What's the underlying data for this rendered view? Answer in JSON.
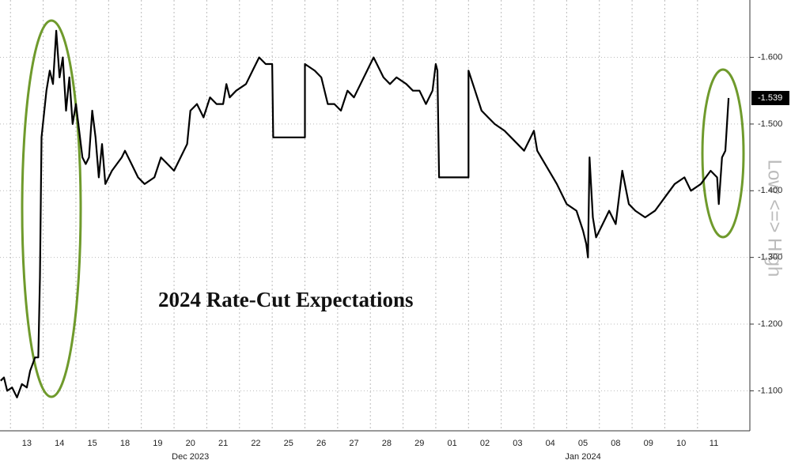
{
  "chart_data": {
    "type": "line",
    "annotation": "2024 Rate-Cut Expectations",
    "axis_label": "Low <=> High",
    "categories": [
      "13",
      "14",
      "15",
      "18",
      "19",
      "20",
      "21",
      "22",
      "25",
      "26",
      "27",
      "28",
      "29",
      "01",
      "02",
      "03",
      "04",
      "05",
      "08",
      "09",
      "10",
      "11"
    ],
    "months": [
      "Dec 2023",
      "Jan 2024"
    ],
    "xlim": [
      -0.82,
      22.1
    ],
    "ylim": [
      -1.04,
      -1.686
    ],
    "yticks": [
      {
        "value": -1.1,
        "label": "-1.100"
      },
      {
        "value": -1.2,
        "label": "-1.200"
      },
      {
        "value": -1.3,
        "label": "-1.300"
      },
      {
        "value": -1.4,
        "label": "-1.400"
      },
      {
        "value": -1.5,
        "label": "-1.500"
      },
      {
        "value": -1.6,
        "label": "-1.600"
      }
    ],
    "grid": true,
    "series": [
      {
        "color": "#000000",
        "x": [
          -0.8,
          -0.7,
          -0.6,
          -0.45,
          -0.3,
          -0.15,
          0,
          0.1,
          0.25,
          0.35,
          0.4,
          0.45,
          0.6,
          0.7,
          0.8,
          0.9,
          1.0,
          1.1,
          1.2,
          1.3,
          1.4,
          1.5,
          1.6,
          1.7,
          1.8,
          1.9,
          2.0,
          2.1,
          2.2,
          2.3,
          2.4,
          2.6,
          2.9,
          3.0,
          3.2,
          3.4,
          3.6,
          3.9,
          4.1,
          4.3,
          4.5,
          4.7,
          4.9,
          5.0,
          5.2,
          5.4,
          5.6,
          5.8,
          6.0,
          6.1,
          6.2,
          6.4,
          6.7,
          6.9,
          7.1,
          7.3,
          7.5,
          7.53,
          8.5,
          8.5,
          8.8,
          9.0,
          9.2,
          9.4,
          9.6,
          9.8,
          10.0,
          10.2,
          10.4,
          10.6,
          10.9,
          11.1,
          11.3,
          11.6,
          11.8,
          12.0,
          12.2,
          12.4,
          12.5,
          12.55,
          12.6,
          13.5,
          13.5,
          13.7,
          13.9,
          14.1,
          14.3,
          14.6,
          14.8,
          15.0,
          15.2,
          15.5,
          15.6,
          16.2,
          16.5,
          16.8,
          17.0,
          17.1,
          17.15,
          17.2,
          17.3,
          17.4,
          17.6,
          17.8,
          18.0,
          18.2,
          18.4,
          18.6,
          18.9,
          19.2,
          19.5,
          19.8,
          20.1,
          20.3,
          20.6,
          20.9,
          21.1,
          21.15,
          21.25,
          21.35,
          21.45
        ],
        "values": [
          -1.115,
          -1.12,
          -1.1,
          -1.105,
          -1.09,
          -1.11,
          -1.105,
          -1.13,
          -1.15,
          -1.15,
          -1.27,
          -1.48,
          -1.55,
          -1.58,
          -1.56,
          -1.64,
          -1.57,
          -1.6,
          -1.52,
          -1.57,
          -1.5,
          -1.53,
          -1.49,
          -1.45,
          -1.44,
          -1.45,
          -1.52,
          -1.48,
          -1.42,
          -1.47,
          -1.41,
          -1.43,
          -1.45,
          -1.46,
          -1.44,
          -1.42,
          -1.41,
          -1.42,
          -1.45,
          -1.44,
          -1.43,
          -1.45,
          -1.47,
          -1.52,
          -1.53,
          -1.51,
          -1.54,
          -1.53,
          -1.53,
          -1.56,
          -1.54,
          -1.55,
          -1.56,
          -1.58,
          -1.6,
          -1.59,
          -1.59,
          -1.48,
          -1.48,
          -1.59,
          -1.58,
          -1.57,
          -1.53,
          -1.53,
          -1.52,
          -1.55,
          -1.54,
          -1.56,
          -1.58,
          -1.6,
          -1.57,
          -1.56,
          -1.57,
          -1.56,
          -1.55,
          -1.55,
          -1.53,
          -1.55,
          -1.59,
          -1.58,
          -1.42,
          -1.42,
          -1.58,
          -1.55,
          -1.52,
          -1.51,
          -1.5,
          -1.49,
          -1.48,
          -1.47,
          -1.46,
          -1.49,
          -1.46,
          -1.41,
          -1.38,
          -1.37,
          -1.34,
          -1.32,
          -1.3,
          -1.45,
          -1.36,
          -1.33,
          -1.35,
          -1.37,
          -1.35,
          -1.43,
          -1.38,
          -1.37,
          -1.36,
          -1.37,
          -1.39,
          -1.41,
          -1.42,
          -1.4,
          -1.41,
          -1.43,
          -1.42,
          -1.38,
          -1.45,
          -1.46,
          -1.539
        ],
        "value_labels": [
          null,
          null,
          null,
          null,
          null,
          null,
          null,
          null,
          null,
          null,
          null,
          null,
          null,
          null,
          null,
          null,
          null,
          null,
          null,
          null,
          null,
          null,
          null,
          null,
          null,
          null,
          null,
          null,
          null,
          null,
          null,
          null,
          null,
          null,
          null,
          null,
          null,
          null,
          null,
          null,
          null,
          null,
          null,
          null,
          null,
          null,
          null,
          null,
          null,
          null,
          null,
          null,
          null,
          null,
          null,
          null,
          null,
          null,
          null,
          null,
          null,
          null,
          null,
          null,
          null,
          null,
          null,
          null,
          null,
          null,
          null,
          null,
          null,
          null,
          null,
          null,
          null,
          null,
          null,
          null,
          null,
          null,
          null,
          null,
          null,
          null,
          null,
          null,
          null,
          null,
          null,
          null,
          null,
          null,
          null,
          null,
          null,
          null,
          null,
          null,
          null,
          null,
          null,
          null,
          null,
          null,
          null,
          null,
          null,
          null,
          null,
          null,
          null,
          null,
          null,
          null,
          null,
          null,
          null,
          null,
          "-1.539"
        ]
      }
    ]
  }
}
